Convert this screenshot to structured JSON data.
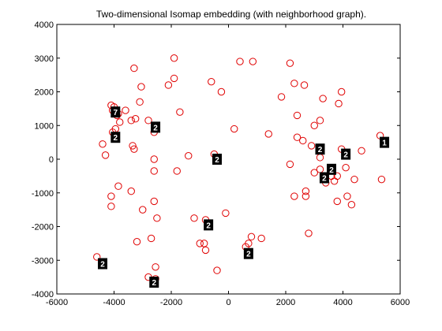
{
  "chart_data": {
    "type": "scatter",
    "title": "Two-dimensional Isomap embedding (with neighborhood graph).",
    "xlabel": "",
    "ylabel": "",
    "xlim": [
      -6000,
      6000
    ],
    "ylim": [
      -4000,
      4000
    ],
    "xticks": [
      -6000,
      -4000,
      -2000,
      0,
      2000,
      4000,
      6000
    ],
    "yticks": [
      -4000,
      -3000,
      -2000,
      -1000,
      0,
      1000,
      2000,
      3000,
      4000
    ],
    "tick_labels_x": [
      "-6000",
      "-4000",
      "-2000",
      "0",
      "2000",
      "4000",
      "6000"
    ],
    "tick_labels_y": [
      "-4000",
      "-3000",
      "-2000",
      "-1000",
      "0",
      "1000",
      "2000",
      "3000",
      "4000"
    ],
    "grid": false,
    "marker_color": "#e00000",
    "marker": "circle",
    "points": [
      {
        "x": -4100,
        "y": 1600
      },
      {
        "x": -4050,
        "y": 1450
      },
      {
        "x": -4000,
        "y": 1550
      },
      {
        "x": -3900,
        "y": 1300
      },
      {
        "x": -3800,
        "y": 1100
      },
      {
        "x": -3950,
        "y": 900
      },
      {
        "x": -4050,
        "y": 800
      },
      {
        "x": -3850,
        "y": 1350
      },
      {
        "x": -3600,
        "y": 1450
      },
      {
        "x": -3400,
        "y": 1150
      },
      {
        "x": -3250,
        "y": 1200
      },
      {
        "x": -3300,
        "y": 300
      },
      {
        "x": -3350,
        "y": 400
      },
      {
        "x": -4400,
        "y": 450
      },
      {
        "x": -4300,
        "y": 120
      },
      {
        "x": -3850,
        "y": -800
      },
      {
        "x": -3400,
        "y": -950
      },
      {
        "x": -4100,
        "y": -1100
      },
      {
        "x": -4100,
        "y": -1400
      },
      {
        "x": -3300,
        "y": 2700
      },
      {
        "x": -3050,
        "y": 2150
      },
      {
        "x": -3100,
        "y": 1700
      },
      {
        "x": -2800,
        "y": 1150
      },
      {
        "x": -2600,
        "y": 800
      },
      {
        "x": -2100,
        "y": 2200
      },
      {
        "x": -1900,
        "y": 2400
      },
      {
        "x": -1900,
        "y": 3000
      },
      {
        "x": -1700,
        "y": 1400
      },
      {
        "x": -2600,
        "y": 0
      },
      {
        "x": -2600,
        "y": -350
      },
      {
        "x": -1800,
        "y": -350
      },
      {
        "x": -1400,
        "y": 100
      },
      {
        "x": -3000,
        "y": -1500
      },
      {
        "x": -2600,
        "y": -1250
      },
      {
        "x": -2500,
        "y": -1750
      },
      {
        "x": -3200,
        "y": -2450
      },
      {
        "x": -2700,
        "y": -2350
      },
      {
        "x": -2550,
        "y": -3200
      },
      {
        "x": -2550,
        "y": -3550
      },
      {
        "x": -2800,
        "y": -3500
      },
      {
        "x": -4600,
        "y": -2900
      },
      {
        "x": -1200,
        "y": -1750
      },
      {
        "x": -1000,
        "y": -2500
      },
      {
        "x": -850,
        "y": -2500
      },
      {
        "x": -800,
        "y": -2700
      },
      {
        "x": -800,
        "y": -1800
      },
      {
        "x": -100,
        "y": -1600
      },
      {
        "x": -400,
        "y": -3300
      },
      {
        "x": -600,
        "y": 2300
      },
      {
        "x": -250,
        "y": 2000
      },
      {
        "x": 200,
        "y": 900
      },
      {
        "x": -500,
        "y": 150
      },
      {
        "x": 400,
        "y": 2900
      },
      {
        "x": 850,
        "y": 2900
      },
      {
        "x": 600,
        "y": -2600
      },
      {
        "x": 800,
        "y": -2300
      },
      {
        "x": 700,
        "y": -2500
      },
      {
        "x": 1150,
        "y": -2350
      },
      {
        "x": 1400,
        "y": 750
      },
      {
        "x": 1850,
        "y": 1850
      },
      {
        "x": 2150,
        "y": 2850
      },
      {
        "x": 2300,
        "y": 2250
      },
      {
        "x": 2400,
        "y": 1300
      },
      {
        "x": 2400,
        "y": 650
      },
      {
        "x": 2600,
        "y": 550
      },
      {
        "x": 2650,
        "y": 2200
      },
      {
        "x": 2900,
        "y": 400
      },
      {
        "x": 2150,
        "y": -150
      },
      {
        "x": 2300,
        "y": -1100
      },
      {
        "x": 2700,
        "y": -1100
      },
      {
        "x": 2700,
        "y": -950
      },
      {
        "x": 2800,
        "y": -2200
      },
      {
        "x": 3000,
        "y": 1000
      },
      {
        "x": 3200,
        "y": 1150
      },
      {
        "x": 3300,
        "y": 1800
      },
      {
        "x": 3000,
        "y": -400
      },
      {
        "x": 3200,
        "y": -300
      },
      {
        "x": 3200,
        "y": 50
      },
      {
        "x": 3400,
        "y": -700
      },
      {
        "x": 3600,
        "y": -500
      },
      {
        "x": 3700,
        "y": -650
      },
      {
        "x": 3800,
        "y": -1250
      },
      {
        "x": 3850,
        "y": 1650
      },
      {
        "x": 3950,
        "y": 2000
      },
      {
        "x": 3800,
        "y": -500
      },
      {
        "x": 4100,
        "y": -250
      },
      {
        "x": 4150,
        "y": -1100
      },
      {
        "x": 4300,
        "y": -1350
      },
      {
        "x": 4400,
        "y": -600
      },
      {
        "x": 4650,
        "y": 250
      },
      {
        "x": 3950,
        "y": 300
      },
      {
        "x": 5300,
        "y": 700
      },
      {
        "x": 5350,
        "y": -600
      }
    ],
    "digit_markers": [
      {
        "x": -3950,
        "y": 1400,
        "label": "7"
      },
      {
        "x": -3950,
        "y": 650,
        "label": "2"
      },
      {
        "x": -2550,
        "y": 950,
        "label": "2"
      },
      {
        "x": -400,
        "y": 0,
        "label": "2"
      },
      {
        "x": -700,
        "y": -1950,
        "label": "2"
      },
      {
        "x": -4400,
        "y": -3100,
        "label": "2"
      },
      {
        "x": -2600,
        "y": -3650,
        "label": "2"
      },
      {
        "x": 700,
        "y": -2800,
        "label": "2"
      },
      {
        "x": 3200,
        "y": 300,
        "label": "2"
      },
      {
        "x": 4100,
        "y": 150,
        "label": "2"
      },
      {
        "x": 3600,
        "y": -300,
        "label": "2"
      },
      {
        "x": 3350,
        "y": -550,
        "label": "2"
      },
      {
        "x": 5450,
        "y": 500,
        "label": "1"
      }
    ]
  }
}
